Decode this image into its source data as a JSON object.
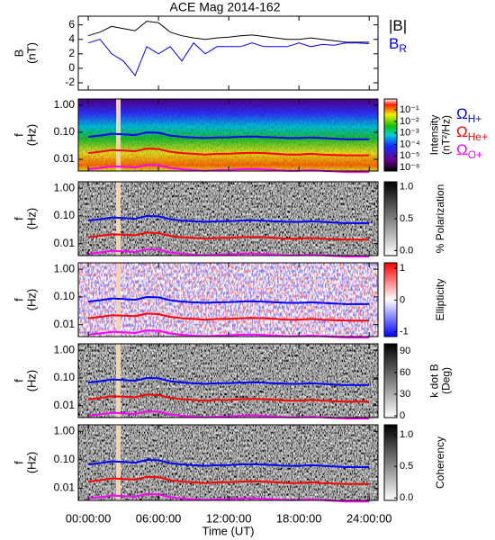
{
  "chart_data": [
    {
      "type": "line",
      "title": "ACE Mag 2014-162",
      "ylabel": [
        "B",
        "(nT)"
      ],
      "x": [
        0,
        1,
        2,
        3,
        4,
        5,
        6,
        7,
        8,
        9,
        10,
        11,
        12,
        13,
        14,
        15,
        16,
        17,
        18,
        19,
        20,
        21,
        22,
        23,
        24
      ],
      "ylim": [
        -3,
        7.2
      ],
      "yticks": [
        -2,
        0,
        2,
        4,
        6
      ],
      "series": [
        {
          "name": "|B|",
          "color": "#000000",
          "values": [
            4.5,
            5,
            5.8,
            5.5,
            5.2,
            6.5,
            6.3,
            5,
            4.5,
            4.2,
            4,
            4.2,
            4.3,
            4.5,
            4.6,
            4.4,
            4.2,
            4,
            4,
            4.2,
            4,
            3.8,
            3.6,
            3.6,
            3.6
          ]
        },
        {
          "name": "B",
          "subscript": "R",
          "color": "#0000ff",
          "values": [
            3.5,
            4,
            2,
            1,
            -1,
            3,
            2,
            3,
            1,
            3.5,
            2,
            3,
            3,
            3,
            3.5,
            3,
            3,
            3,
            3.5,
            3,
            3.3,
            3.2,
            3.5,
            3.5,
            3.4
          ]
        }
      ]
    },
    {
      "type": "spectrogram",
      "ylabel": [
        "f",
        "(Hz)"
      ],
      "log_y": true,
      "ylim": [
        0.0037,
        1.7
      ],
      "yticks": [
        {
          "value": 1,
          "label": "1.00"
        },
        {
          "value": 0.1,
          "label": "0.10"
        },
        0.01
      ],
      "colormap": "rainbow",
      "cscale": "log",
      "clim": [
        5e-07,
        0.87
      ],
      "cticks": [
        {
          "value": 0.1,
          "label": "10⁻¹"
        },
        {
          "value": 0.01,
          "label": "10⁻²"
        },
        {
          "value": 0.001,
          "label": "10⁻³"
        },
        {
          "value": 0.0001,
          "label": "10⁻⁴"
        },
        {
          "value": 1e-05,
          "label": "10⁻⁵"
        },
        {
          "value": 1e-06,
          "label": "10⁻⁶"
        }
      ],
      "clabel": [
        "Intensity",
        "(nT²/Hz)"
      ],
      "x": [
        0,
        1,
        2,
        3,
        4,
        5,
        6,
        7,
        8,
        9,
        10,
        11,
        12,
        13,
        14,
        15,
        16,
        17,
        18,
        19,
        20,
        21,
        22,
        23,
        24
      ],
      "series": [
        {
          "name": "Ω",
          "subscript": "H+",
          "color": "#0000ff",
          "values": [
            0.068,
            0.076,
            0.088,
            0.084,
            0.079,
            0.099,
            0.096,
            0.076,
            0.068,
            0.064,
            0.061,
            0.064,
            0.065,
            0.068,
            0.07,
            0.067,
            0.064,
            0.061,
            0.061,
            0.064,
            0.061,
            0.058,
            0.055,
            0.055,
            0.055
          ]
        },
        {
          "name": "Ω",
          "subscript": "He+",
          "color": "#ff0000",
          "values": [
            0.017,
            0.019,
            0.022,
            0.021,
            0.02,
            0.025,
            0.024,
            0.019,
            0.017,
            0.016,
            0.015,
            0.016,
            0.016,
            0.017,
            0.0175,
            0.017,
            0.016,
            0.015,
            0.015,
            0.016,
            0.015,
            0.0145,
            0.014,
            0.014,
            0.014
          ]
        },
        {
          "name": "Ω",
          "subscript": "O+",
          "color": "#ff00ff",
          "values": [
            0.0043,
            0.0048,
            0.0055,
            0.0053,
            0.005,
            0.0062,
            0.006,
            0.0048,
            0.0043,
            0.004,
            0.0038,
            0.004,
            0.0041,
            0.0043,
            0.0044,
            0.0042,
            0.004,
            0.0038,
            0.0038,
            0.004,
            0.0038,
            0.0036,
            0.0034,
            0.0034,
            0.0034
          ]
        }
      ]
    },
    {
      "type": "spectrogram",
      "ylabel": [
        "f",
        "(Hz)"
      ],
      "log_y": true,
      "ylim": [
        0.0037,
        1.7
      ],
      "yticks": [
        {
          "value": 1,
          "label": "1.00"
        },
        {
          "value": 0.1,
          "label": "0.10"
        },
        0.01
      ],
      "colormap": "gray",
      "clim": [
        -0.08,
        1.08
      ],
      "cticks": [
        {
          "value": 1,
          "label": "1.0"
        },
        0.5,
        {
          "value": 0,
          "label": "0.0"
        }
      ],
      "clabel": [
        "% Polarization"
      ]
    },
    {
      "type": "spectrogram",
      "ylabel": [
        "f",
        "(Hz)"
      ],
      "log_y": true,
      "ylim": [
        0.0037,
        1.7
      ],
      "yticks": [
        {
          "value": 1,
          "label": "1.00"
        },
        {
          "value": 0.1,
          "label": "0.10"
        },
        0.01
      ],
      "colormap": "bwr",
      "clim": [
        -1.15,
        1.17
      ],
      "cticks": [
        1,
        0,
        -1
      ],
      "clabel": [
        "Ellipticity"
      ]
    },
    {
      "type": "spectrogram",
      "ylabel": [
        "f",
        "(Hz)"
      ],
      "log_y": true,
      "ylim": [
        0.0037,
        1.7
      ],
      "yticks": [
        {
          "value": 1,
          "label": "1.00"
        },
        {
          "value": 0.1,
          "label": "0.10"
        },
        0.01
      ],
      "colormap": "gray",
      "clim": [
        -2.5,
        100
      ],
      "cticks": [
        90,
        60,
        30,
        0
      ],
      "clabel": [
        "k dot B",
        "(Deg)"
      ]
    },
    {
      "type": "spectrogram",
      "ylabel": [
        "f",
        "(Hz)"
      ],
      "log_y": true,
      "ylim": [
        0.0037,
        1.7
      ],
      "yticks": [
        {
          "value": 1,
          "label": "1.00"
        },
        {
          "value": 0.1,
          "label": "0.10"
        },
        0.01
      ],
      "colormap": "gray",
      "clim": [
        -0.04,
        1.16
      ],
      "cticks": [
        {
          "value": 1,
          "label": "1.0"
        },
        0.5,
        {
          "value": 0,
          "label": "0.0"
        }
      ],
      "clabel": [
        "Coherency"
      ],
      "xlim": [
        -0.85,
        24.75
      ],
      "xticks": [
        {
          "value": 0,
          "label": "00:00:00"
        },
        {
          "value": 6,
          "label": "06:00:00"
        },
        {
          "value": 12,
          "label": "12:00:00"
        },
        {
          "value": 18,
          "label": "18:00:00"
        },
        {
          "value": 24,
          "label": "24:00:00"
        }
      ],
      "xlabel": "Time (UT)"
    }
  ]
}
